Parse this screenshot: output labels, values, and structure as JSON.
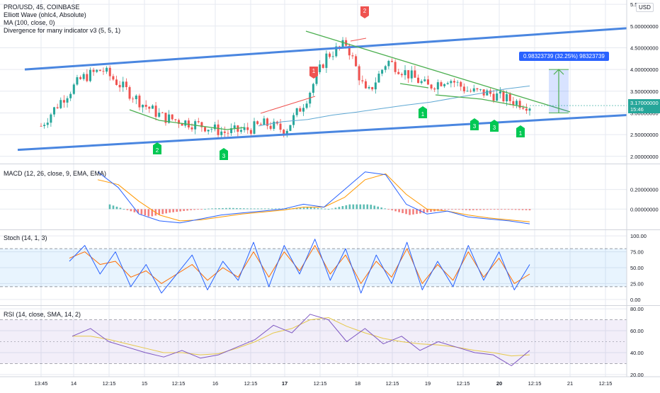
{
  "colors": {
    "up": "#26a69a",
    "down": "#ef5350",
    "trendline": "#4a86e0",
    "wedge": "#4caf50",
    "ma": "#5fa8d3",
    "divergence": "#ef5350",
    "macd": "#2962ff",
    "signal": "#ff9800",
    "stoch_k": "#2962ff",
    "stoch_d": "#ff6d00",
    "rsi": "#7e57c2",
    "rsi_ma": "#e6c84a",
    "wave_label": "#00c853",
    "wave_label_red": "#ef5350",
    "price_tag": "#26a69a",
    "measure": "#2962ff"
  },
  "main_legend": {
    "symbol_line": "PRO/USD, 45, COINBASE",
    "line2": "Elliott Wave (ohlc4, Absolute)",
    "line3": "MA (100, close, 0)",
    "line4": "Divergence for many indicator v3 (5, 5, 1)"
  },
  "currency": "USD",
  "price_tag": {
    "value": "3.17000000",
    "time": "15:46"
  },
  "measure_label": "0.98323739 (32.25%) 98323739",
  "wave_labels": [
    {
      "text": "2",
      "color": "red",
      "direction": "down"
    },
    {
      "text": "1",
      "color": "red",
      "direction": "down"
    },
    {
      "text": "2",
      "color": "green",
      "direction": "up"
    },
    {
      "text": "3",
      "color": "green",
      "direction": "up"
    },
    {
      "text": "1",
      "color": "green",
      "direction": "up"
    },
    {
      "text": "3",
      "color": "green",
      "direction": "up"
    },
    {
      "text": "3",
      "color": "green",
      "direction": "up"
    },
    {
      "text": "1",
      "color": "green",
      "direction": "up"
    }
  ],
  "macd_legend": "MACD (12, 26, close, 9, EMA, EMA)",
  "stoch_legend": "Stoch (14, 1, 3)",
  "rsi_legend": "RSI (14, close, SMA, 14, 2)",
  "x_axis_labels": [
    "13:45",
    "14",
    "12:15",
    "15",
    "12:15",
    "16",
    "12:15",
    "17",
    "12:15",
    "18",
    "12:15",
    "19",
    "12:15",
    "20",
    "12:15",
    "21",
    "12:15"
  ],
  "chart_data": [
    {
      "type": "candlestick",
      "title": "PRO/USD, 45, COINBASE",
      "y_ticks": [
        "2.00000000",
        "2.50000000",
        "3.00000000",
        "3.50000000",
        "4.00000000",
        "4.50000000",
        "5.00000000",
        "5.5"
      ],
      "ylim": [
        1.85,
        5.6
      ],
      "series": [
        {
          "name": "MA (100, close, 0)",
          "values": [
            2.7,
            2.8,
            2.85,
            2.95,
            3.02,
            3.1,
            3.18,
            3.25,
            3.35,
            3.45,
            3.55,
            3.62
          ]
        },
        {
          "name": "close",
          "values": [
            2.7,
            3.3,
            3.8,
            4.0,
            3.6,
            3.2,
            2.9,
            2.8,
            2.7,
            2.55,
            2.6,
            2.75,
            2.6,
            3.3,
            4.3,
            4.6,
            3.4,
            4.2,
            3.9,
            3.6,
            3.8,
            3.5,
            3.45,
            3.3,
            3.17
          ]
        }
      ],
      "annotations": {
        "upper_trendline": [
          4.0,
          4.95
        ],
        "lower_trendline": [
          2.15,
          2.95
        ],
        "measure": {
          "from": 3.0,
          "to": 4.0,
          "label": "0.98323739 (32.25%) 98323739"
        }
      }
    },
    {
      "type": "line",
      "title": "MACD (12, 26, close, 9, EMA, EMA)",
      "y_ticks": [
        "0.20000000",
        "0.00000000"
      ],
      "ylim": [
        -0.2,
        0.45
      ],
      "series": [
        {
          "name": "MACD",
          "values": [
            0.38,
            0.22,
            -0.05,
            -0.12,
            -0.14,
            -0.1,
            -0.06,
            -0.04,
            -0.02,
            0.0,
            0.05,
            0.02,
            0.2,
            0.38,
            0.35,
            0.05,
            -0.05,
            -0.02,
            -0.08,
            -0.1,
            -0.12,
            -0.15
          ]
        },
        {
          "name": "Signal",
          "values": [
            0.3,
            0.25,
            0.08,
            -0.06,
            -0.12,
            -0.11,
            -0.08,
            -0.05,
            -0.03,
            -0.01,
            0.02,
            0.02,
            0.12,
            0.3,
            0.36,
            0.15,
            0.0,
            -0.02,
            -0.06,
            -0.09,
            -0.11,
            -0.13
          ]
        }
      ]
    },
    {
      "type": "line",
      "title": "Stoch (14, 1, 3)",
      "y_ticks": [
        "100.00",
        "75.00",
        "50.00",
        "25.00",
        "0.00"
      ],
      "ylim": [
        -8,
        108
      ],
      "bands": [
        20,
        80
      ],
      "series": [
        {
          "name": "%K",
          "values": [
            60,
            85,
            40,
            75,
            20,
            55,
            10,
            40,
            70,
            15,
            60,
            30,
            90,
            20,
            85,
            40,
            95,
            30,
            80,
            10,
            70,
            25,
            90,
            15,
            60,
            20,
            85,
            30,
            75,
            15,
            55
          ]
        },
        {
          "name": "%D",
          "values": [
            65,
            75,
            55,
            60,
            35,
            45,
            25,
            40,
            55,
            30,
            50,
            35,
            75,
            35,
            75,
            45,
            85,
            40,
            70,
            25,
            60,
            35,
            80,
            25,
            55,
            30,
            75,
            35,
            65,
            25,
            40
          ]
        }
      ]
    },
    {
      "type": "line",
      "title": "RSI (14, close, SMA, 14, 2)",
      "y_ticks": [
        "80.00",
        "60.00",
        "40.00",
        "20.00"
      ],
      "ylim": [
        18,
        82
      ],
      "bands": [
        30,
        70
      ],
      "series": [
        {
          "name": "RSI",
          "values": [
            55,
            62,
            50,
            45,
            40,
            36,
            42,
            35,
            38,
            45,
            52,
            65,
            58,
            75,
            70,
            50,
            62,
            48,
            55,
            42,
            50,
            45,
            40,
            38,
            28,
            42
          ]
        },
        {
          "name": "RSI-based MA",
          "values": [
            55,
            55,
            52,
            48,
            44,
            40,
            40,
            38,
            39,
            44,
            50,
            58,
            62,
            70,
            72,
            64,
            58,
            53,
            50,
            48,
            47,
            45,
            42,
            40,
            37,
            38
          ]
        }
      ]
    }
  ]
}
